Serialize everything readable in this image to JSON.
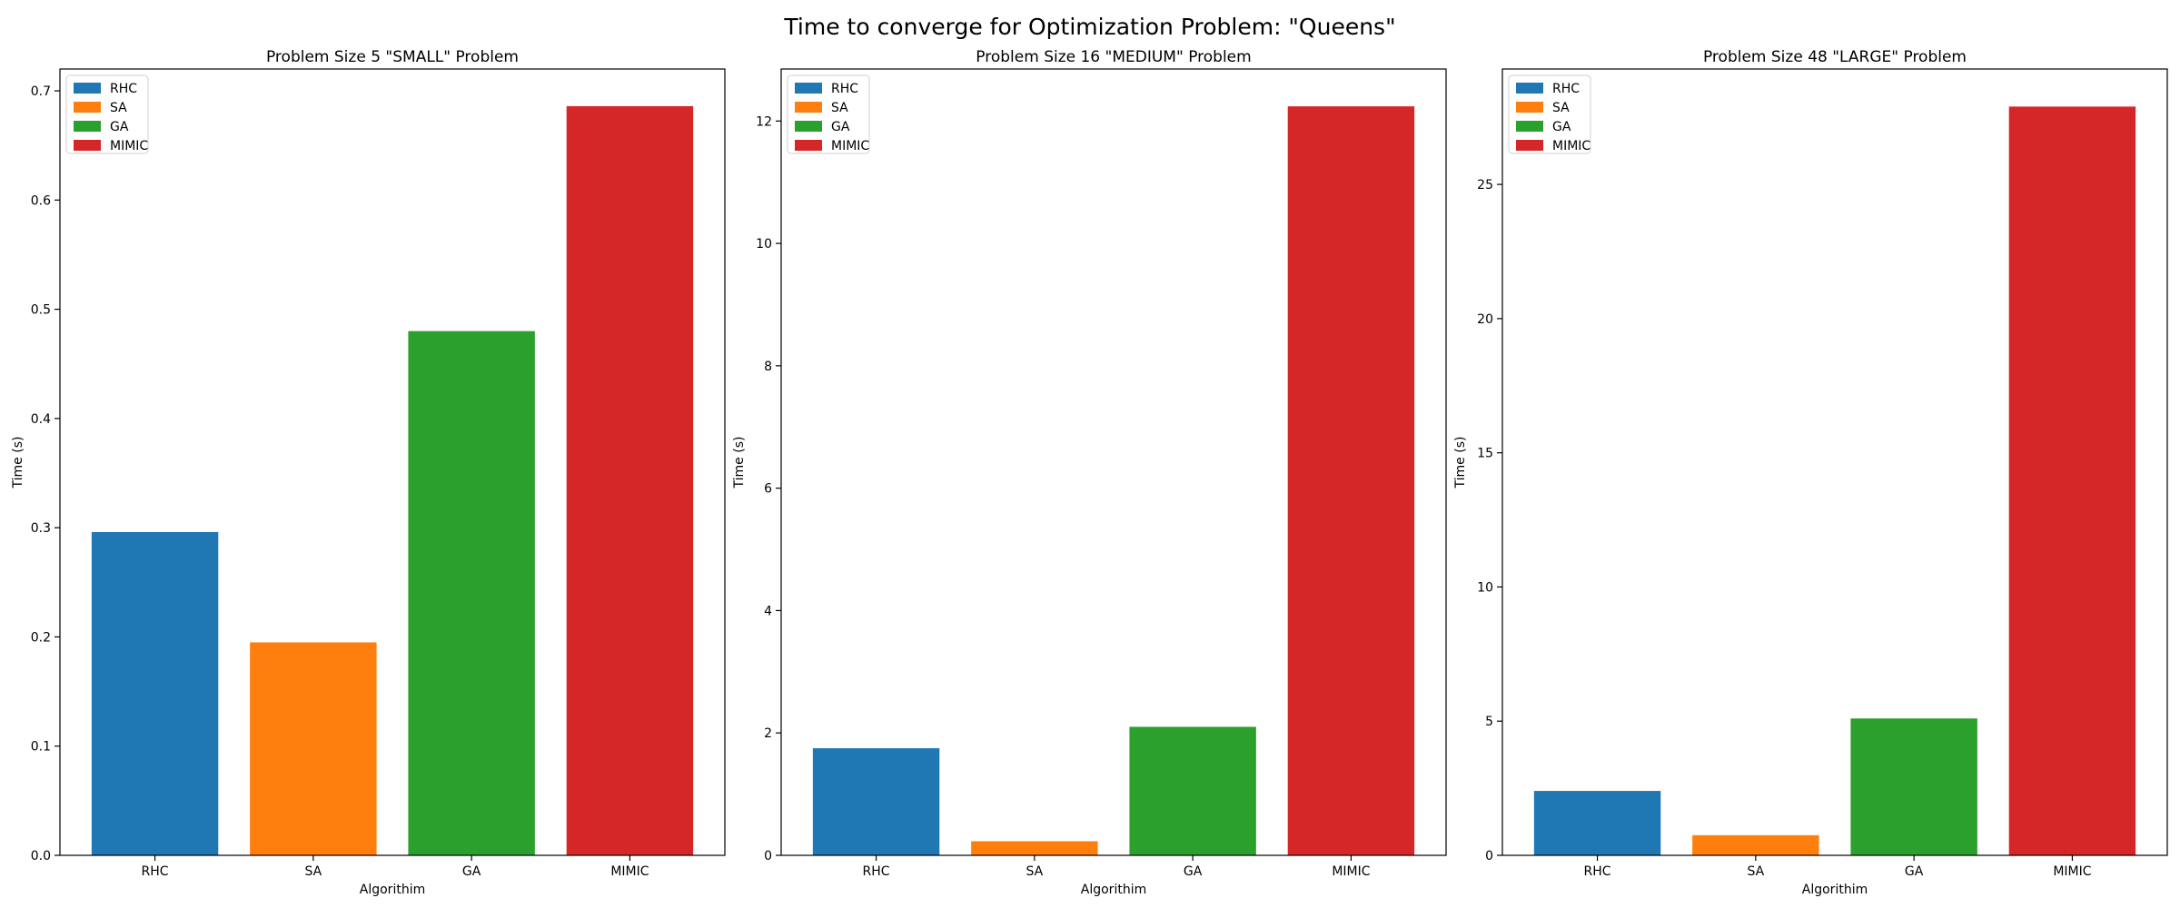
{
  "suptitle": "Time to converge for Optimization Problem: \"Queens\"",
  "colors": {
    "RHC": "#1f77b4",
    "SA": "#ff7f0e",
    "GA": "#2ca02c",
    "MIMIC": "#d62728"
  },
  "chart_data": [
    {
      "type": "bar",
      "title": "Problem Size 5 \"SMALL\" Problem",
      "xlabel": "Algorithim",
      "ylabel": "Time (s)",
      "categories": [
        "RHC",
        "SA",
        "GA",
        "MIMIC"
      ],
      "values": [
        0.296,
        0.195,
        0.48,
        0.686
      ],
      "ylim": [
        0,
        0.72
      ],
      "yticks": [
        0.0,
        0.1,
        0.2,
        0.3,
        0.4,
        0.5,
        0.6,
        0.7
      ],
      "ytick_labels": [
        "0.0",
        "0.1",
        "0.2",
        "0.3",
        "0.4",
        "0.5",
        "0.6",
        "0.7"
      ],
      "legend": [
        "RHC",
        "SA",
        "GA",
        "MIMIC"
      ],
      "legend_loc": "upper-left",
      "grid": false
    },
    {
      "type": "bar",
      "title": "Problem Size 16 \"MEDIUM\" Problem",
      "xlabel": "Algorithim",
      "ylabel": "Time (s)",
      "categories": [
        "RHC",
        "SA",
        "GA",
        "MIMIC"
      ],
      "values": [
        1.75,
        0.23,
        2.1,
        12.24
      ],
      "ylim": [
        0,
        12.85
      ],
      "yticks": [
        0,
        2,
        4,
        6,
        8,
        10,
        12
      ],
      "ytick_labels": [
        "0",
        "2",
        "4",
        "6",
        "8",
        "10",
        "12"
      ],
      "legend": [
        "RHC",
        "SA",
        "GA",
        "MIMIC"
      ],
      "legend_loc": "upper-left",
      "grid": false
    },
    {
      "type": "bar",
      "title": "Problem Size 48 \"LARGE\" Problem",
      "xlabel": "Algorithim",
      "ylabel": "Time (s)",
      "categories": [
        "RHC",
        "SA",
        "GA",
        "MIMIC"
      ],
      "values": [
        2.4,
        0.75,
        5.1,
        27.9
      ],
      "ylim": [
        0,
        29.3
      ],
      "yticks": [
        0,
        5,
        10,
        15,
        20,
        25
      ],
      "ytick_labels": [
        "0",
        "5",
        "10",
        "15",
        "20",
        "25"
      ],
      "legend": [
        "RHC",
        "SA",
        "GA",
        "MIMIC"
      ],
      "legend_loc": "upper-left",
      "grid": false
    }
  ]
}
